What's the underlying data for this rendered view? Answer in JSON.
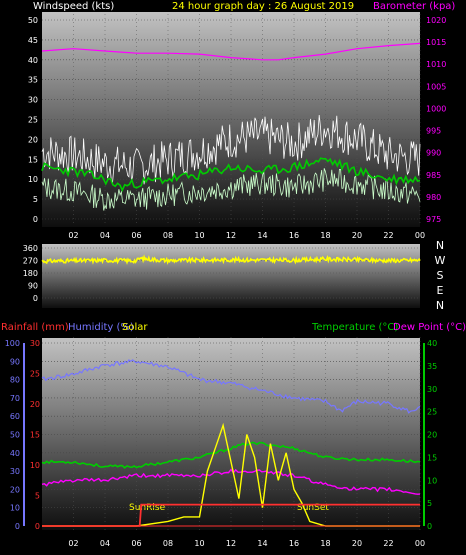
{
  "header": {
    "windspeed_label": "Windspeed (kts)",
    "title": "24 hour graph day : 26 August 2019",
    "barometer_label": "Barometer (kpa)"
  },
  "colors": {
    "background": "#000000",
    "panel_top": "#c0c0c0",
    "panel_bottom": "#101010",
    "white_text": "#ffffff",
    "title_yellow": "#ffff00",
    "barometer": "#ff00ff",
    "wind_gust": "#ffffff",
    "wind_avg": "#00cc00",
    "wind_speed": "#ccffcc",
    "wind_dir": "#ffff00",
    "rain": "#ff3030",
    "humidity": "#7777ff",
    "solar": "#ffff00",
    "temperature": "#00cc00",
    "dewpoint": "#ff00ff",
    "sun_marker": "#ff0000"
  },
  "wind_chart": {
    "left_ticks": [
      "0",
      "5",
      "10",
      "15",
      "20",
      "25",
      "30",
      "35",
      "40",
      "45",
      "50"
    ],
    "right_ticks": [
      "975",
      "980",
      "985",
      "990",
      "995",
      "1000",
      "1005",
      "1010",
      "1015",
      "1020"
    ],
    "x_ticks": [
      "02",
      "04",
      "06",
      "08",
      "10",
      "12",
      "14",
      "16",
      "18",
      "20",
      "22",
      "00"
    ]
  },
  "dir_chart": {
    "ticks": [
      "0",
      "90",
      "180",
      "270",
      "360"
    ],
    "compass": [
      "N",
      "W",
      "S",
      "E",
      "N"
    ]
  },
  "lower_chart": {
    "labels": {
      "rainfall": "Rainfall (mm)",
      "humidity": "Humidity (%)",
      "solar": "Solar",
      "temperature": "Temperature (°C)",
      "dewpoint": "Dew Point (°C)"
    },
    "humidity_ticks": [
      "0",
      "10",
      "20",
      "30",
      "40",
      "50",
      "60",
      "70",
      "80",
      "90",
      "100"
    ],
    "rain_ticks": [
      "0",
      "5",
      "10",
      "15",
      "20",
      "25",
      "30"
    ],
    "temp_ticks": [
      "0",
      "5",
      "10",
      "15",
      "20",
      "25",
      "30",
      "35",
      "40"
    ],
    "x_ticks": [
      "02",
      "04",
      "06",
      "08",
      "10",
      "12",
      "14",
      "16",
      "18",
      "20",
      "22",
      "00"
    ],
    "sunrise_label": "SunRise",
    "sunset_label": "SunSet"
  },
  "chart_data": [
    {
      "type": "line",
      "title": "24 hour graph day : 26 August 2019",
      "x_unit": "hour",
      "xlim": [
        0,
        24
      ],
      "left_axis": {
        "label": "Windspeed (kts)",
        "ylim": [
          0,
          50
        ]
      },
      "right_axis": {
        "label": "Barometer (kpa)",
        "ylim": [
          975,
          1020
        ]
      },
      "series": [
        {
          "name": "Barometer (kpa)",
          "axis": "right",
          "x": [
            0,
            2,
            4,
            6,
            8,
            10,
            12,
            14,
            15,
            16,
            18,
            20,
            22,
            24
          ],
          "values": [
            1013,
            1013.5,
            1013,
            1012.5,
            1012.5,
            1012.3,
            1011.5,
            1011,
            1011,
            1011.5,
            1012.3,
            1013.5,
            1014.2,
            1014.7
          ]
        },
        {
          "axis": "left",
          "x": [
            0,
            2,
            4,
            5,
            6,
            8,
            10,
            12,
            14,
            16,
            18,
            20,
            22,
            24
          ],
          "values": [
            13,
            12,
            10,
            8,
            9,
            10,
            11,
            13,
            12,
            13,
            15,
            12,
            10,
            10
          ]
        },
        {
          "axis": "left",
          "x": [
            0,
            2,
            4,
            6,
            8,
            10,
            12,
            14,
            16,
            18,
            20,
            22,
            24
          ],
          "values": [
            17,
            16,
            14,
            13,
            15,
            17,
            20,
            21,
            19,
            23,
            20,
            16,
            15
          ]
        },
        {
          "axis": "left",
          "x": [
            0,
            2,
            4,
            6,
            8,
            10,
            12,
            14,
            16,
            18,
            20,
            22,
            24
          ],
          "values": [
            8,
            7,
            5,
            5,
            6,
            7,
            8,
            9,
            8,
            10,
            9,
            7,
            6
          ]
        }
      ]
    },
    {
      "type": "line",
      "xlim": [
        0,
        24
      ],
      "ylim": [
        0,
        360
      ],
      "series": [
        {
          "axis": "left",
          "x": [
            0,
            4,
            6,
            6.2,
            8,
            12,
            16,
            18,
            22,
            24
          ],
          "values": [
            265,
            272,
            268,
            285,
            270,
            275,
            272,
            280,
            270,
            272
          ]
        }
      ]
    },
    {
      "type": "line",
      "xlim": [
        0,
        24
      ],
      "axes": {
        "humidity": {
          "label": "Humidity (%)",
          "ylim": [
            0,
            100
          ]
        },
        "rain": {
          "label": "Rainfall (mm)",
          "ylim": [
            0,
            30
          ]
        },
        "temperature": {
          "label": "Temperature (°C)",
          "ylim": [
            0,
            40
          ]
        }
      },
      "series": [
        {
          "name": "Humidity (%)",
          "axis": "humidity",
          "x": [
            0,
            2,
            4,
            6,
            8,
            10,
            12,
            14,
            16,
            18,
            19,
            20,
            22,
            23.5,
            24
          ],
          "values": [
            80,
            83,
            88,
            90,
            87,
            80,
            78,
            74,
            70,
            68,
            63,
            68,
            67,
            62,
            66
          ]
        },
        {
          "name": "Rainfall (mm)",
          "axis": "rain",
          "x": [
            0,
            6.2,
            6.3,
            17,
            17.1,
            24
          ],
          "values": [
            0,
            0,
            3.5,
            3.5,
            3.5,
            3.5
          ]
        },
        {
          "name": "Solar",
          "axis": "temperature",
          "x": [
            0,
            6,
            8,
            9,
            10,
            10.5,
            11,
            11.5,
            12,
            12.5,
            13,
            13.5,
            14,
            14.5,
            15,
            15.5,
            16,
            16.5,
            17,
            18,
            24
          ],
          "values": [
            0,
            0,
            1,
            2,
            2,
            12,
            17,
            22,
            14,
            6,
            20,
            15,
            4,
            18,
            10,
            16,
            8,
            5,
            1,
            0,
            0
          ]
        },
        {
          "name": "Temperature (°C)",
          "axis": "temperature",
          "x": [
            0,
            2,
            4,
            6,
            8,
            10,
            12,
            13,
            14,
            16,
            18,
            20,
            22,
            24
          ],
          "values": [
            14,
            14,
            13,
            13,
            14,
            15,
            17,
            18,
            18,
            17,
            15,
            14.5,
            14.5,
            14
          ]
        },
        {
          "name": "Dew Point (°C)",
          "axis": "temperature",
          "x": [
            0,
            2,
            4,
            6,
            8,
            10,
            12,
            14,
            16,
            18,
            20,
            22,
            24
          ],
          "values": [
            9,
            10,
            10,
            11,
            11,
            11,
            12,
            12,
            11,
            9,
            8,
            8,
            7
          ]
        }
      ]
    }
  ]
}
